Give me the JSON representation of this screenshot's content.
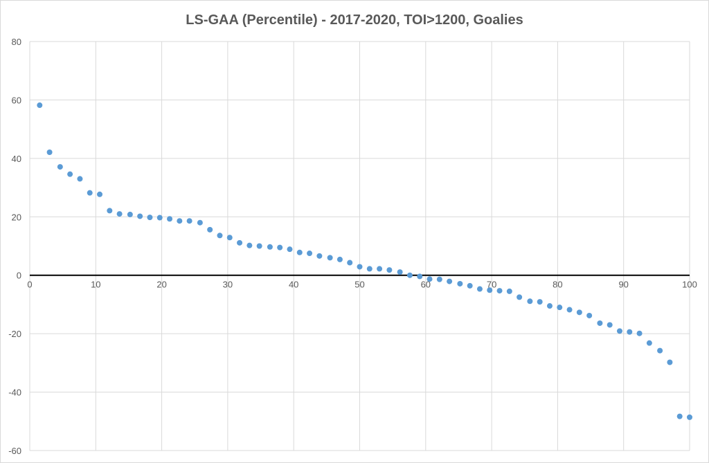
{
  "chart_data": {
    "type": "scatter",
    "title": "LS-GAA (Percentile) - 2017-2020, TOI>1200, Goalies",
    "xlabel": "",
    "ylabel": "",
    "xlim": [
      0,
      100
    ],
    "ylim": [
      -60,
      80
    ],
    "xticks": [
      0,
      10,
      20,
      30,
      40,
      50,
      60,
      70,
      80,
      90,
      100
    ],
    "yticks": [
      -60,
      -40,
      -20,
      0,
      20,
      40,
      60,
      80
    ],
    "grid": true,
    "legend": "none",
    "colors": {
      "marker": "#5b9bd5",
      "grid": "#d9d9d9",
      "zero_line": "#000000",
      "text": "#595959"
    },
    "series": [
      {
        "points": [
          [
            1.5,
            58.2
          ],
          [
            3.0,
            42.1
          ],
          [
            4.6,
            37.1
          ],
          [
            6.1,
            34.6
          ],
          [
            7.6,
            33.0
          ],
          [
            9.1,
            28.2
          ],
          [
            10.6,
            27.7
          ],
          [
            12.1,
            22.1
          ],
          [
            13.6,
            21.0
          ],
          [
            15.2,
            20.8
          ],
          [
            16.7,
            20.2
          ],
          [
            18.2,
            19.8
          ],
          [
            19.7,
            19.7
          ],
          [
            21.2,
            19.3
          ],
          [
            22.7,
            18.6
          ],
          [
            24.2,
            18.6
          ],
          [
            25.8,
            18.0
          ],
          [
            27.3,
            15.6
          ],
          [
            28.8,
            13.6
          ],
          [
            30.3,
            12.9
          ],
          [
            31.8,
            11.1
          ],
          [
            33.3,
            10.2
          ],
          [
            34.8,
            10.0
          ],
          [
            36.4,
            9.7
          ],
          [
            37.9,
            9.5
          ],
          [
            39.4,
            8.9
          ],
          [
            40.9,
            7.8
          ],
          [
            42.4,
            7.5
          ],
          [
            43.9,
            6.6
          ],
          [
            45.5,
            6.0
          ],
          [
            47.0,
            5.4
          ],
          [
            48.5,
            4.3
          ],
          [
            50.0,
            2.9
          ],
          [
            51.5,
            2.2
          ],
          [
            53.0,
            2.2
          ],
          [
            54.5,
            1.8
          ],
          [
            56.1,
            1.1
          ],
          [
            57.6,
            0.0
          ],
          [
            59.1,
            -0.4
          ],
          [
            60.6,
            -1.3
          ],
          [
            62.1,
            -1.4
          ],
          [
            63.6,
            -2.1
          ],
          [
            65.2,
            -2.9
          ],
          [
            66.7,
            -3.6
          ],
          [
            68.2,
            -4.7
          ],
          [
            69.7,
            -5.1
          ],
          [
            71.2,
            -5.3
          ],
          [
            72.7,
            -5.5
          ],
          [
            74.2,
            -7.5
          ],
          [
            75.8,
            -8.9
          ],
          [
            77.3,
            -9.1
          ],
          [
            78.8,
            -10.5
          ],
          [
            80.3,
            -11.0
          ],
          [
            81.8,
            -11.8
          ],
          [
            83.3,
            -12.7
          ],
          [
            84.8,
            -13.8
          ],
          [
            86.4,
            -16.4
          ],
          [
            87.9,
            -17.0
          ],
          [
            89.4,
            -19.1
          ],
          [
            90.9,
            -19.4
          ],
          [
            92.4,
            -19.9
          ],
          [
            93.9,
            -23.2
          ],
          [
            95.5,
            -25.8
          ],
          [
            97.0,
            -29.8
          ],
          [
            98.5,
            -48.3
          ],
          [
            100.0,
            -48.6
          ]
        ]
      }
    ]
  }
}
